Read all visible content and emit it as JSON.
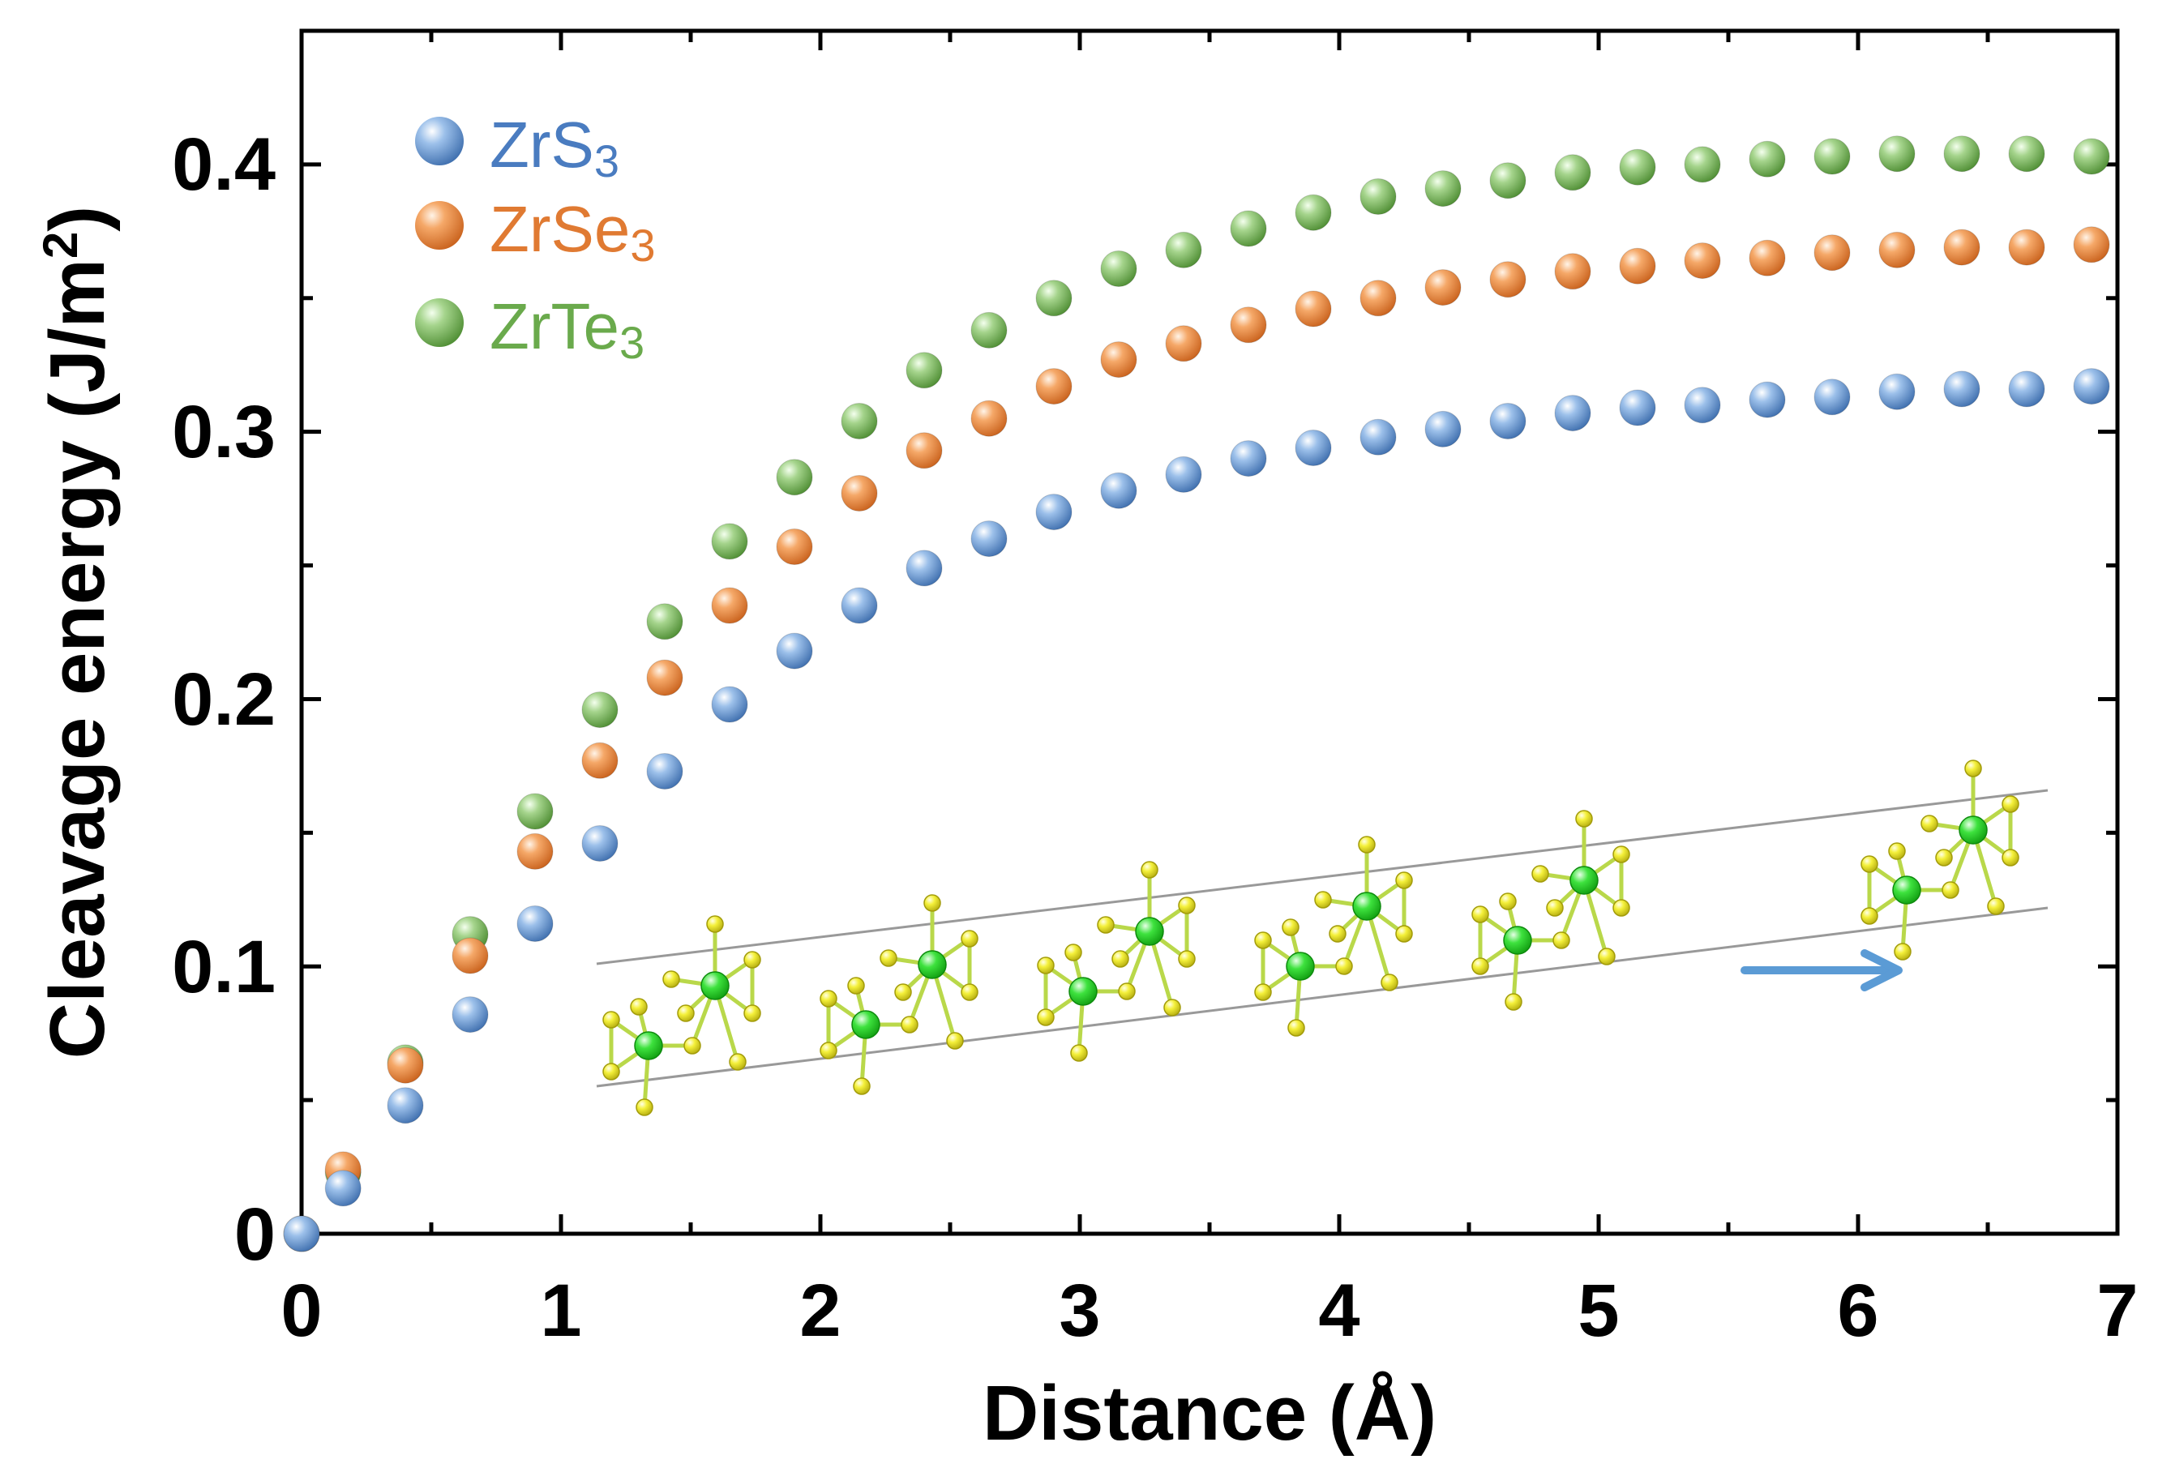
{
  "chart_data": {
    "type": "scatter",
    "title": "",
    "xlabel": "Distance (Å)",
    "ylabel": {
      "main": "Cleavage energy (J/m",
      "sup": "2",
      "close": ")"
    },
    "xlim": [
      0,
      7
    ],
    "ylim": [
      0,
      0.45
    ],
    "xticks": [
      "0",
      "1",
      "2",
      "3",
      "4",
      "5",
      "6",
      "7"
    ],
    "yticks": [
      "0",
      "0.1",
      "0.2",
      "0.3",
      "0.4"
    ],
    "legend_position": "top-left",
    "x": [
      0,
      0.16,
      0.4,
      0.65,
      0.9,
      1.15,
      1.4,
      1.65,
      1.9,
      2.15,
      2.4,
      2.65,
      2.9,
      3.15,
      3.4,
      3.65,
      3.9,
      4.15,
      4.4,
      4.65,
      4.9,
      5.15,
      5.4,
      5.65,
      5.9,
      6.15,
      6.4,
      6.65,
      6.9
    ],
    "series": [
      {
        "name": "ZrS3",
        "label_base": "ZrS",
        "label_sub": "3",
        "color": "#5b8fd0",
        "values": [
          0,
          0.017,
          0.048,
          0.082,
          0.116,
          0.146,
          0.173,
          0.198,
          0.218,
          0.235,
          0.249,
          0.26,
          0.27,
          0.278,
          0.284,
          0.29,
          0.294,
          0.298,
          0.301,
          0.304,
          0.307,
          0.309,
          0.31,
          0.312,
          0.313,
          0.315,
          0.316,
          0.316,
          0.317
        ]
      },
      {
        "name": "ZrSe3",
        "label_base": "ZrSe",
        "label_sub": "3",
        "color": "#e8843c",
        "values": [
          0,
          0.024,
          0.063,
          0.104,
          0.143,
          0.177,
          0.208,
          0.235,
          0.257,
          0.277,
          0.293,
          0.305,
          0.317,
          0.327,
          0.333,
          0.34,
          0.346,
          0.35,
          0.354,
          0.357,
          0.36,
          0.362,
          0.364,
          0.365,
          0.367,
          0.368,
          0.369,
          0.369,
          0.37
        ]
      },
      {
        "name": "ZrTe3",
        "label_base": "ZrTe",
        "label_sub": "3",
        "color": "#76b45a",
        "values": [
          0,
          0.023,
          0.064,
          0.112,
          0.158,
          0.196,
          0.229,
          0.259,
          0.283,
          0.304,
          0.323,
          0.338,
          0.35,
          0.361,
          0.368,
          0.376,
          0.382,
          0.388,
          0.391,
          0.394,
          0.397,
          0.399,
          0.4,
          0.402,
          0.403,
          0.404,
          0.404,
          0.404,
          0.403
        ]
      }
    ]
  },
  "inset": {
    "description_icon": "crystal-structure-illustration",
    "arrow_color": "#5b9bd5"
  }
}
